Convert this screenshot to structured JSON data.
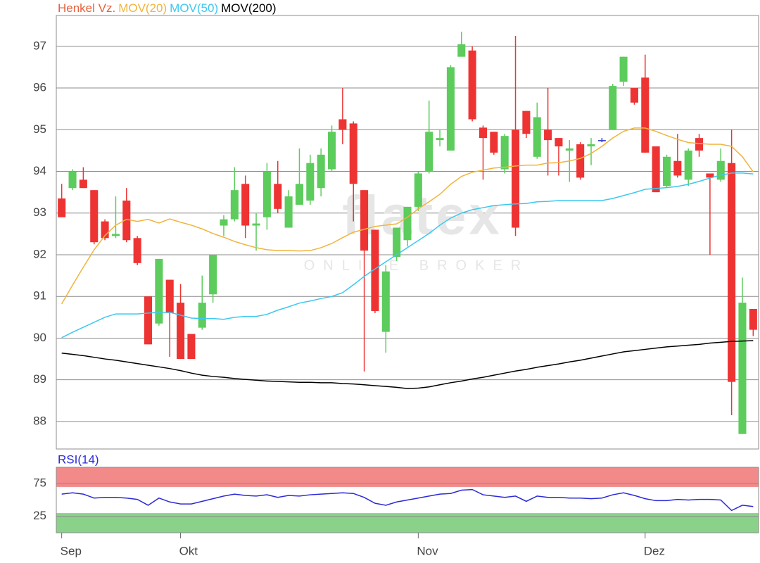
{
  "chart_data": [
    {
      "type": "candlestick",
      "categories": [
        "Sep",
        null,
        null,
        null,
        null,
        null,
        null,
        null,
        null,
        null,
        null,
        "Okt",
        null,
        null,
        null,
        null,
        null,
        null,
        null,
        null,
        null,
        null,
        null,
        null,
        null,
        null,
        null,
        null,
        null,
        null,
        null,
        null,
        null,
        "Nov",
        null,
        null,
        null,
        null,
        null,
        null,
        null,
        null,
        null,
        null,
        null,
        null,
        null,
        null,
        null,
        null,
        null,
        null,
        null,
        null,
        "Dez",
        null,
        null,
        null,
        null,
        null,
        null,
        null,
        null,
        null,
        null
      ],
      "candles": {
        "name": "Henkel Vz.",
        "color": "#e8603c",
        "up_color": "#5ccc5c",
        "down_color": "#ee3333",
        "doji_color": "#3333cc",
        "open": [
          93.35,
          93.6,
          93.8,
          93.55,
          92.8,
          92.45,
          93.3,
          92.4,
          91.0,
          90.35,
          91.4,
          90.85,
          90.1,
          90.25,
          91.05,
          92.7,
          92.85,
          93.7,
          92.7,
          92.9,
          93.7,
          92.65,
          93.2,
          93.3,
          93.6,
          94.05,
          95.25,
          95.15,
          93.55,
          92.6,
          90.15,
          91.95,
          92.35,
          93.15,
          94.0,
          94.75,
          94.5,
          96.75,
          96.9,
          95.05,
          94.95,
          94.05,
          95.0,
          95.45,
          94.35,
          95.0,
          94.8,
          94.5,
          94.65,
          94.6,
          94.75,
          95.0,
          96.15,
          96.0,
          96.25,
          94.6,
          93.65,
          94.25,
          93.8,
          94.8,
          93.95,
          93.8,
          94.2,
          87.7,
          90.7
        ],
        "high": [
          93.7,
          94.05,
          94.1,
          93.55,
          92.85,
          93.4,
          93.6,
          92.45,
          91.0,
          91.9,
          91.4,
          91.3,
          90.1,
          91.5,
          92.0,
          92.95,
          94.1,
          93.9,
          93.0,
          94.2,
          94.25,
          93.55,
          94.55,
          94.4,
          94.55,
          95.1,
          96.0,
          95.2,
          93.55,
          92.6,
          91.75,
          92.65,
          93.15,
          94.0,
          95.7,
          95.0,
          96.55,
          97.35,
          97.0,
          95.1,
          94.95,
          94.9,
          97.25,
          95.45,
          95.65,
          96.0,
          94.8,
          94.75,
          94.7,
          94.8,
          94.8,
          96.1,
          96.75,
          96.0,
          96.8,
          94.6,
          94.4,
          94.9,
          94.55,
          94.9,
          93.95,
          94.55,
          95.0,
          91.45,
          90.7
        ],
        "low": [
          92.9,
          93.55,
          93.6,
          92.25,
          92.35,
          92.4,
          92.3,
          91.75,
          89.85,
          90.3,
          89.55,
          89.5,
          89.5,
          90.2,
          90.85,
          92.45,
          92.8,
          92.4,
          92.1,
          92.6,
          93.0,
          92.65,
          93.2,
          93.2,
          93.4,
          94.0,
          94.65,
          92.8,
          89.2,
          90.6,
          89.65,
          91.85,
          92.2,
          93.05,
          93.95,
          94.6,
          94.5,
          96.75,
          95.2,
          93.8,
          94.4,
          93.95,
          92.45,
          94.8,
          94.3,
          93.9,
          93.9,
          93.75,
          93.8,
          94.15,
          94.7,
          95.0,
          96.05,
          95.6,
          94.45,
          93.5,
          93.6,
          93.85,
          93.65,
          94.35,
          92.0,
          93.75,
          88.15,
          87.7,
          90.05
        ],
        "close": [
          92.9,
          94.0,
          93.6,
          92.3,
          92.4,
          92.5,
          92.35,
          91.8,
          89.85,
          91.9,
          90.6,
          89.5,
          89.5,
          90.85,
          92.0,
          92.85,
          93.55,
          92.7,
          92.75,
          94.0,
          93.1,
          93.4,
          93.7,
          94.2,
          94.4,
          94.95,
          95.0,
          93.7,
          92.1,
          90.65,
          91.6,
          92.65,
          93.15,
          93.95,
          94.95,
          94.8,
          96.5,
          97.05,
          95.25,
          94.8,
          94.45,
          94.85,
          92.65,
          94.9,
          95.3,
          94.75,
          94.6,
          94.55,
          93.85,
          94.65,
          94.75,
          96.05,
          96.75,
          95.65,
          94.45,
          93.5,
          94.35,
          93.9,
          94.5,
          94.5,
          93.85,
          94.25,
          88.95,
          90.85,
          90.2
        ]
      },
      "series": [
        {
          "name": "MOV(20)",
          "color": "#f0b43c",
          "values": [
            90.82,
            91.27,
            91.7,
            92.12,
            92.46,
            92.71,
            92.85,
            92.8,
            92.85,
            92.76,
            92.86,
            92.78,
            92.71,
            92.62,
            92.51,
            92.42,
            92.32,
            92.24,
            92.17,
            92.12,
            92.1,
            92.1,
            92.09,
            92.1,
            92.17,
            92.27,
            92.41,
            92.54,
            92.61,
            92.68,
            92.71,
            92.74,
            92.9,
            93.1,
            93.27,
            93.45,
            93.69,
            93.88,
            93.98,
            94.03,
            94.08,
            94.1,
            94.13,
            94.15,
            94.15,
            94.2,
            94.21,
            94.25,
            94.31,
            94.43,
            94.6,
            94.8,
            94.96,
            95.04,
            95.04,
            94.96,
            94.86,
            94.77,
            94.69,
            94.67,
            94.65,
            94.65,
            94.6,
            94.35,
            93.99
          ]
        },
        {
          "name": "MOV(50)",
          "color": "#3cc8f0",
          "values": [
            90.01,
            90.14,
            90.26,
            90.38,
            90.5,
            90.58,
            90.58,
            90.58,
            90.6,
            90.62,
            90.62,
            90.55,
            90.48,
            90.47,
            90.47,
            90.45,
            90.5,
            90.52,
            90.52,
            90.57,
            90.67,
            90.75,
            90.84,
            90.89,
            90.95,
            91.0,
            91.09,
            91.28,
            91.48,
            91.66,
            91.83,
            92.0,
            92.17,
            92.34,
            92.51,
            92.71,
            92.88,
            93.0,
            93.08,
            93.13,
            93.18,
            93.2,
            93.22,
            93.23,
            93.27,
            93.28,
            93.3,
            93.3,
            93.3,
            93.3,
            93.3,
            93.35,
            93.42,
            93.49,
            93.57,
            93.59,
            93.61,
            93.64,
            93.69,
            93.76,
            93.84,
            93.91,
            93.96,
            93.96,
            93.94
          ]
        },
        {
          "name": "MOV(200)",
          "color": "#000000",
          "values": [
            89.64,
            89.61,
            89.58,
            89.54,
            89.5,
            89.47,
            89.43,
            89.39,
            89.35,
            89.31,
            89.27,
            89.22,
            89.16,
            89.11,
            89.08,
            89.06,
            89.03,
            89.01,
            88.99,
            88.97,
            88.96,
            88.95,
            88.94,
            88.94,
            88.93,
            88.93,
            88.91,
            88.9,
            88.88,
            88.86,
            88.84,
            88.82,
            88.79,
            88.8,
            88.83,
            88.88,
            88.93,
            88.97,
            89.02,
            89.06,
            89.11,
            89.16,
            89.21,
            89.25,
            89.3,
            89.34,
            89.38,
            89.43,
            89.47,
            89.52,
            89.57,
            89.62,
            89.67,
            89.7,
            89.73,
            89.76,
            89.79,
            89.81,
            89.83,
            89.85,
            89.88,
            89.9,
            89.92,
            89.93,
            89.94
          ]
        }
      ],
      "ylim": [
        87.34,
        97.74
      ],
      "yticks": [
        88,
        89,
        90,
        91,
        92,
        93,
        94,
        95,
        96,
        97
      ],
      "grid": true,
      "watermark": "flatex",
      "watermark_tagline": "ONLINE BROKER"
    },
    {
      "type": "line",
      "series": [
        {
          "name": "RSI(14)",
          "color": "#2a2ad8",
          "values": [
            59,
            61,
            59,
            53,
            54,
            54,
            53,
            51,
            42,
            53,
            47,
            44,
            44,
            48,
            52,
            56,
            59,
            57,
            56,
            58,
            54,
            57,
            56,
            58,
            59,
            60,
            61,
            60,
            54,
            45,
            42,
            47,
            50,
            53,
            56,
            59,
            60,
            65,
            66,
            58,
            56,
            54,
            56,
            48,
            56,
            54,
            54,
            53,
            53,
            52,
            53,
            58,
            61,
            57,
            52,
            49,
            49,
            51,
            50,
            51,
            51,
            50,
            34,
            42,
            40
          ]
        }
      ],
      "ylim": [
        0,
        100
      ],
      "yticks": [
        25,
        75
      ],
      "grid": true,
      "zones": [
        {
          "from": 70,
          "to": 100,
          "color": "#f28a8a"
        },
        {
          "from": 0,
          "to": 30,
          "color": "#8ad28a"
        }
      ]
    }
  ]
}
